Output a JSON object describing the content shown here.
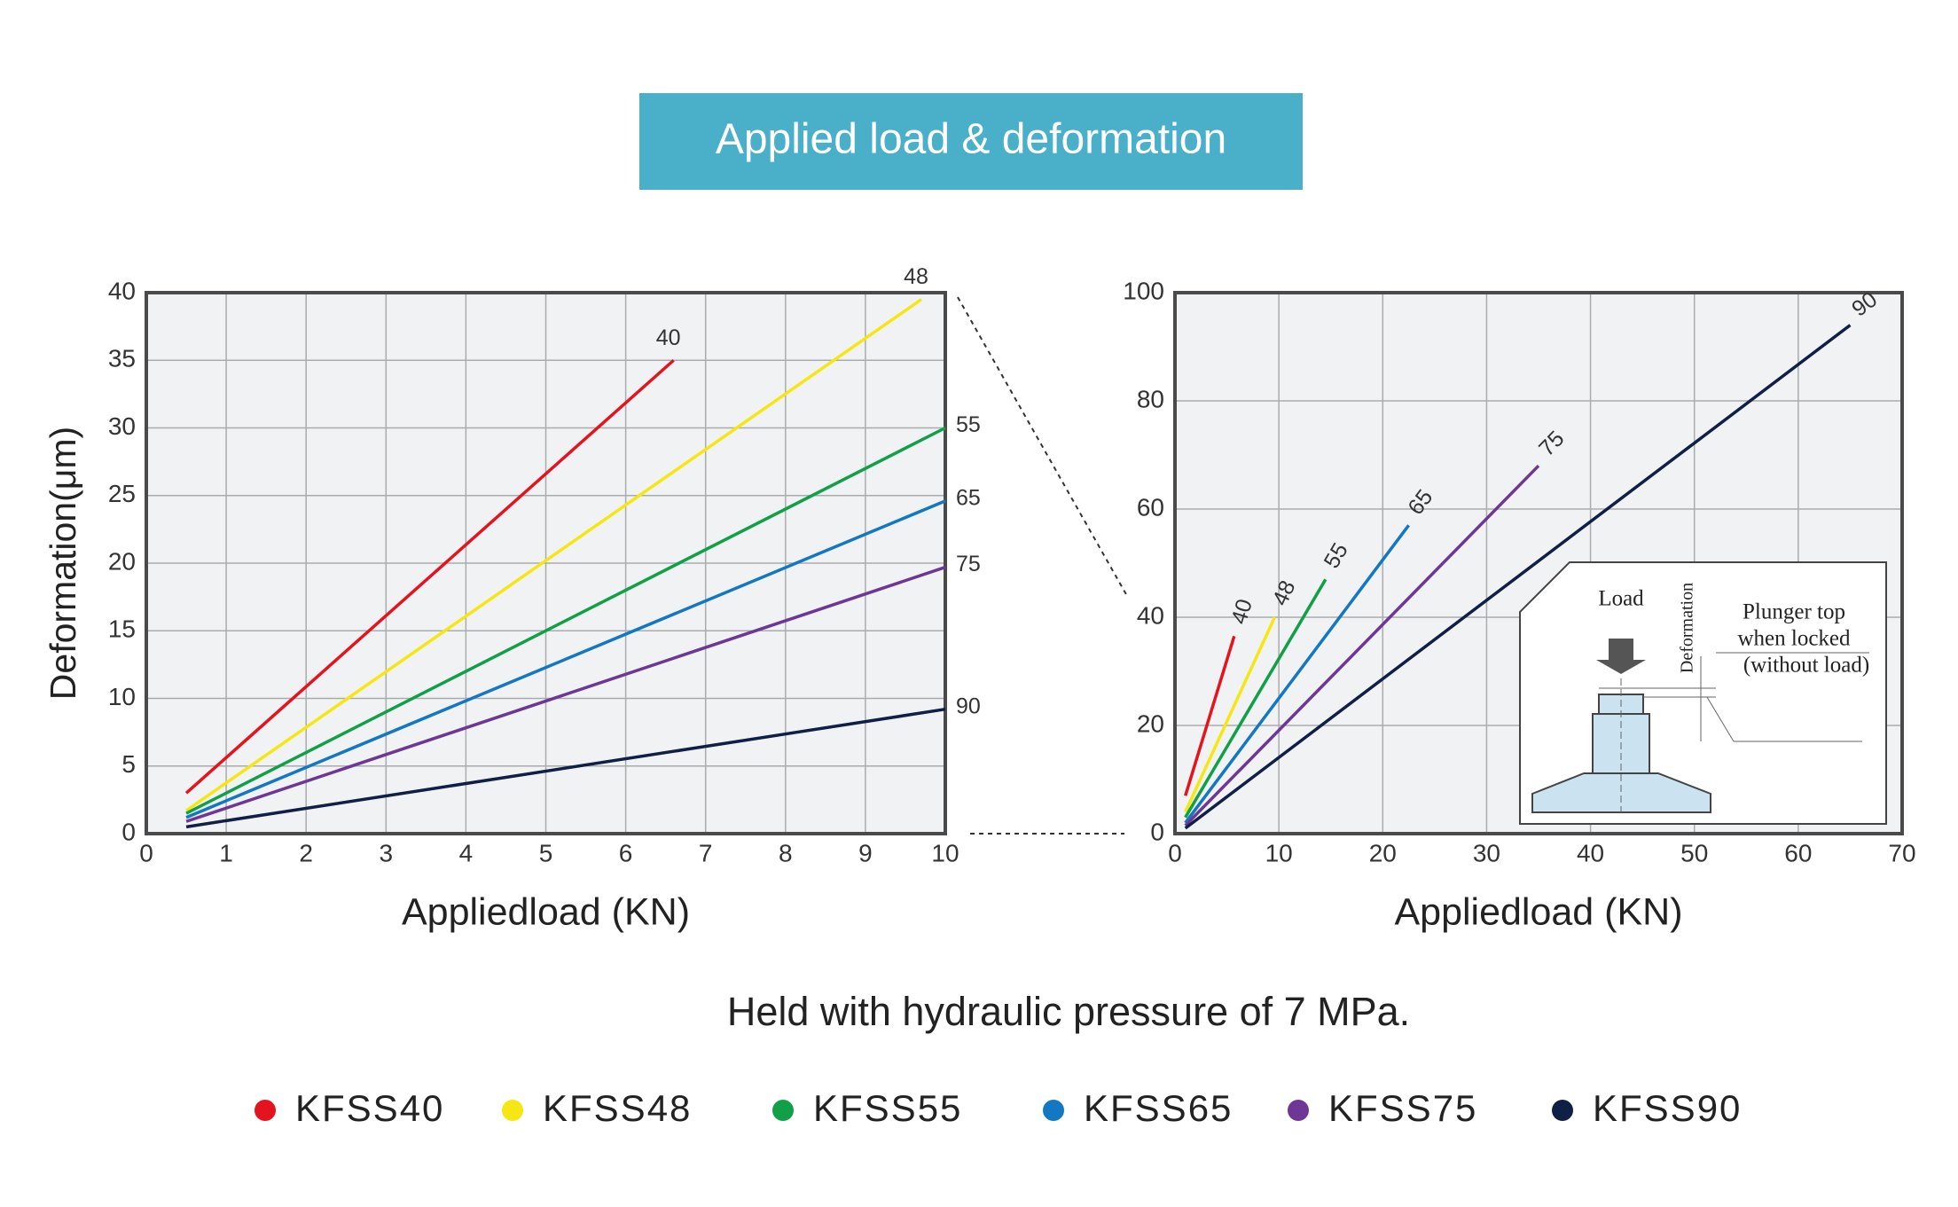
{
  "title": "Applied load & deformation",
  "note": "Held with hydraulic pressure of 7 MPa.",
  "inset": {
    "load": "Load",
    "deformation": "Deformation",
    "line1": "Plunger top",
    "line2": "when locked",
    "line3": "(without load)"
  },
  "chart_data": [
    {
      "type": "line",
      "xlabel": "Appliedload (KN)",
      "ylabel": "Deformation(μm)",
      "xlim": [
        0,
        10
      ],
      "ylim": [
        0,
        40
      ],
      "xticks": [
        0,
        1,
        2,
        3,
        4,
        5,
        6,
        7,
        8,
        9,
        10
      ],
      "yticks": [
        0,
        5,
        10,
        15,
        20,
        25,
        30,
        35,
        40
      ],
      "grid": true,
      "rotated_labels": false,
      "series": [
        {
          "name": "KFSS40",
          "end_label": "40",
          "color": "#e3141d",
          "x": [
            0.5,
            6.6
          ],
          "values": [
            3,
            35
          ]
        },
        {
          "name": "KFSS48",
          "end_label": "48",
          "color": "#f6e614",
          "x": [
            0.5,
            9.7
          ],
          "values": [
            1.7,
            39.5
          ]
        },
        {
          "name": "KFSS55",
          "end_label": "55",
          "color": "#11a047",
          "x": [
            0.5,
            10
          ],
          "values": [
            1.5,
            30
          ]
        },
        {
          "name": "KFSS65",
          "end_label": "65",
          "color": "#1477c2",
          "x": [
            0.5,
            10
          ],
          "values": [
            1.2,
            24.6
          ]
        },
        {
          "name": "KFSS75",
          "end_label": "75",
          "color": "#6f3795",
          "x": [
            0.5,
            10
          ],
          "values": [
            0.9,
            19.7
          ]
        },
        {
          "name": "KFSS90",
          "end_label": "90",
          "color": "#101f45",
          "x": [
            0.5,
            10
          ],
          "values": [
            0.5,
            9.2
          ]
        }
      ]
    },
    {
      "type": "line",
      "xlabel": "Appliedload (KN)",
      "xlim": [
        0,
        70
      ],
      "ylim": [
        0,
        100
      ],
      "xticks": [
        0,
        10,
        20,
        30,
        40,
        50,
        60,
        70
      ],
      "yticks": [
        0,
        20,
        40,
        60,
        80,
        100
      ],
      "grid": true,
      "rotated_labels": true,
      "series": [
        {
          "end_label": "40",
          "color": "#e3141d",
          "x": [
            1,
            5.7
          ],
          "values": [
            7,
            36.5
          ]
        },
        {
          "end_label": "48",
          "color": "#f6e614",
          "x": [
            1,
            9.6
          ],
          "values": [
            4,
            40
          ]
        },
        {
          "end_label": "55",
          "color": "#11a047",
          "x": [
            1,
            14.5
          ],
          "values": [
            3,
            47
          ]
        },
        {
          "end_label": "65",
          "color": "#1477c2",
          "x": [
            1,
            22.5
          ],
          "values": [
            2,
            57
          ]
        },
        {
          "end_label": "75",
          "color": "#6f3795",
          "x": [
            1,
            35
          ],
          "values": [
            1.5,
            68
          ]
        },
        {
          "end_label": "90",
          "color": "#101f45",
          "x": [
            1,
            65
          ],
          "values": [
            1,
            94
          ]
        }
      ]
    }
  ]
}
